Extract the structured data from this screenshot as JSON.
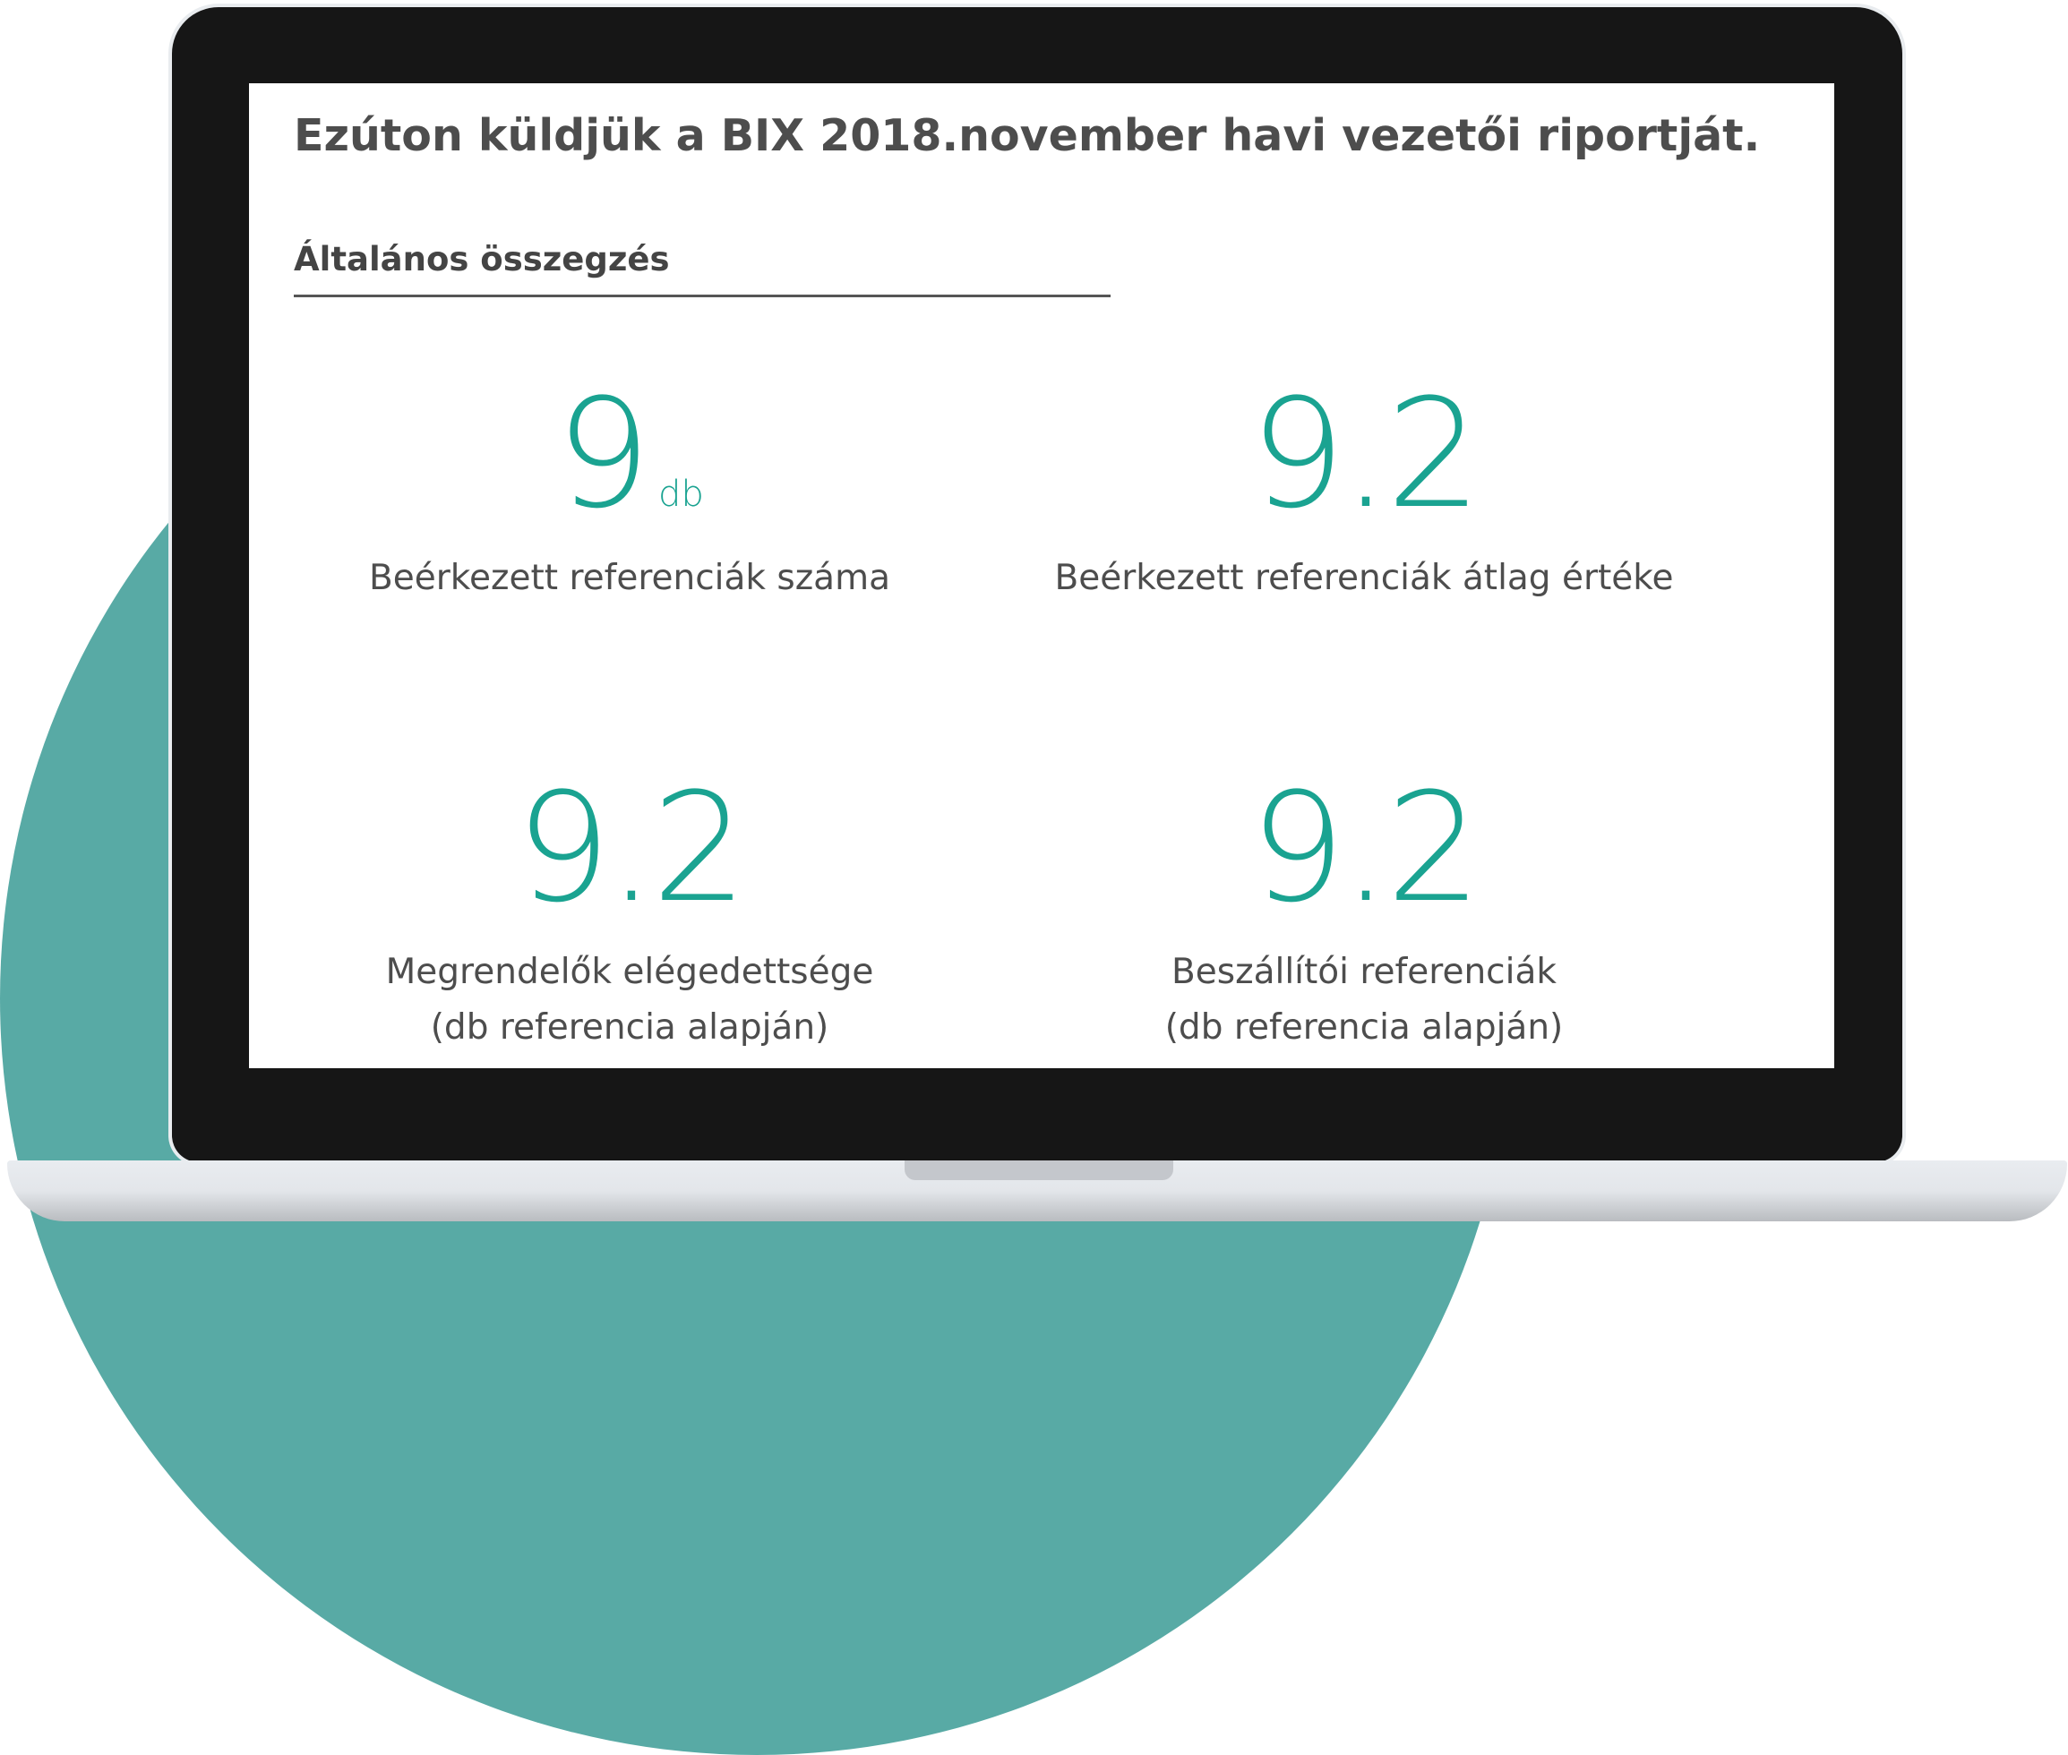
{
  "report": {
    "headline": "Ezúton küldjük a BIX 2018.november havi vezetői riportját.",
    "section_title": "Általános összegzés",
    "stats": [
      {
        "value": "9",
        "unit": "db",
        "label_line1": "Beérkezett referenciák száma",
        "label_line2": ""
      },
      {
        "value": "9.2",
        "unit": "",
        "label_line1": "Beérkezett referenciák átlag értéke",
        "label_line2": ""
      },
      {
        "value": "9.2",
        "unit": "",
        "label_line1": "Megrendelők elégedettsége",
        "label_line2": "(db referencia alapján)"
      },
      {
        "value": "9.2",
        "unit": "",
        "label_line1": "Beszállítói referenciák",
        "label_line2": "(db referencia alapján)"
      }
    ]
  },
  "colors": {
    "accent": "#1aa391",
    "background_circle": "#58aaa5",
    "laptop_bezel": "#161616",
    "text": "#4d4d4d"
  }
}
